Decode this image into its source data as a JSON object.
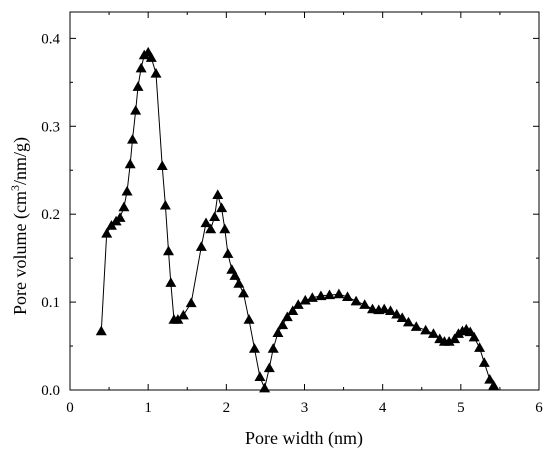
{
  "chart_data": {
    "type": "line",
    "title": "",
    "xlabel": "Pore width (nm)",
    "ylabel_parts": [
      "Pore volume (cm",
      "3",
      "/nm/g)"
    ],
    "xlim": [
      0,
      6
    ],
    "ylim": [
      0.0,
      0.43
    ],
    "xticks": [
      0,
      1,
      2,
      3,
      4,
      5,
      6
    ],
    "yticks": [
      0.0,
      0.1,
      0.2,
      0.3,
      0.4
    ],
    "ytick_labels": [
      "0.0",
      "0.1",
      "0.2",
      "0.3",
      "0.4"
    ],
    "grid": false,
    "marker": "filled-triangle",
    "series": [
      {
        "x": [
          0.4,
          0.47,
          0.53,
          0.59,
          0.64,
          0.69,
          0.73,
          0.77,
          0.8,
          0.84,
          0.87,
          0.91,
          0.95,
          1.0,
          1.04,
          1.1,
          1.18,
          1.22,
          1.26,
          1.29,
          1.33,
          1.38,
          1.45,
          1.55,
          1.68,
          1.74,
          1.8,
          1.85,
          1.89,
          1.94,
          1.98,
          2.02,
          2.07,
          2.11,
          2.16,
          2.22,
          2.29,
          2.36,
          2.43,
          2.49,
          2.55,
          2.6,
          2.66,
          2.72,
          2.78,
          2.85,
          2.92,
          3.01,
          3.1,
          3.21,
          3.32,
          3.44,
          3.55,
          3.66,
          3.77,
          3.87,
          3.95,
          4.02,
          4.1,
          4.18,
          4.25,
          4.33,
          4.43,
          4.55,
          4.65,
          4.73,
          4.79,
          4.85,
          4.92,
          4.97,
          5.02,
          5.07,
          5.12,
          5.17,
          5.24,
          5.3,
          5.37,
          5.42
        ],
        "y": [
          0.067,
          0.178,
          0.187,
          0.192,
          0.196,
          0.208,
          0.226,
          0.257,
          0.285,
          0.318,
          0.345,
          0.366,
          0.381,
          0.384,
          0.378,
          0.36,
          0.255,
          0.21,
          0.158,
          0.122,
          0.08,
          0.08,
          0.085,
          0.099,
          0.163,
          0.19,
          0.183,
          0.197,
          0.222,
          0.207,
          0.183,
          0.155,
          0.137,
          0.13,
          0.121,
          0.11,
          0.08,
          0.047,
          0.015,
          0.002,
          0.025,
          0.047,
          0.065,
          0.074,
          0.083,
          0.09,
          0.097,
          0.102,
          0.105,
          0.107,
          0.108,
          0.109,
          0.106,
          0.101,
          0.097,
          0.092,
          0.091,
          0.092,
          0.09,
          0.086,
          0.082,
          0.077,
          0.072,
          0.068,
          0.064,
          0.058,
          0.055,
          0.055,
          0.058,
          0.064,
          0.067,
          0.069,
          0.066,
          0.06,
          0.048,
          0.031,
          0.012,
          0.005
        ]
      }
    ]
  }
}
